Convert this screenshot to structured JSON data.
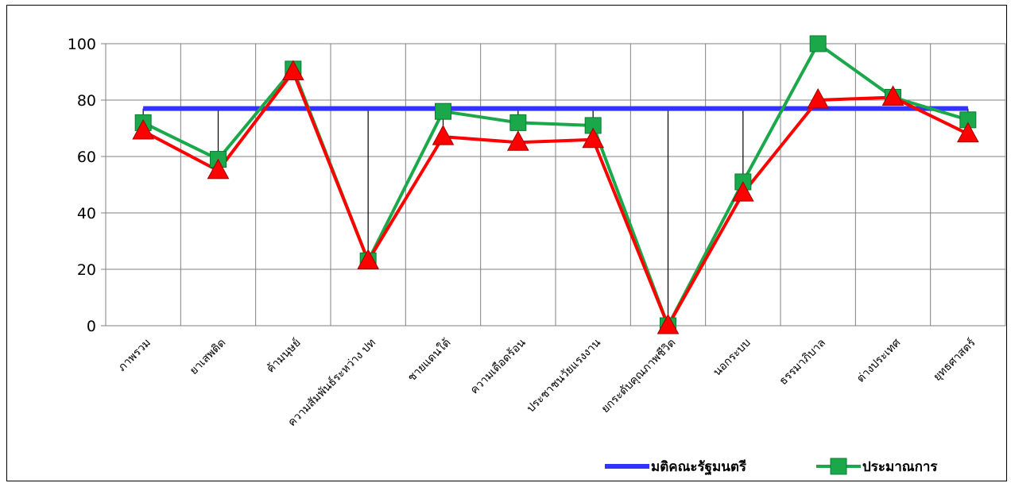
{
  "chart_data": {
    "type": "line",
    "title": "",
    "xlabel": "",
    "ylabel": "",
    "ylim": [
      0,
      100
    ],
    "yticks": [
      0,
      20,
      40,
      60,
      80,
      100
    ],
    "grid": true,
    "legend_position": "bottom-right",
    "categories": [
      "ภาพรวม",
      "ยาเสพติด",
      "ค้ามนุษย์",
      "ความสัมพันธ์ระหว่าง ปท",
      "ชายแดนใต้",
      "ความเดือดร้อน",
      "ประชาชนวัยแรงงาน",
      "ยกระดับคุณภาพชีวิต",
      "นอกระบบ",
      "ธรรมาภิบาล",
      "ต่างประเทศ",
      "ยุทธศาสตร์"
    ],
    "series": [
      {
        "name": "มติคณะรัฐมนตรี",
        "color": "#3333ff",
        "marker": "none",
        "values": [
          77,
          77,
          77,
          77,
          77,
          77,
          77,
          77,
          77,
          77,
          77,
          77
        ]
      },
      {
        "name": "ประมาณการ",
        "color": "#1aa84a",
        "marker": "square",
        "values": [
          72,
          59,
          91,
          23,
          76,
          72,
          71,
          0,
          51,
          100,
          81,
          73
        ]
      },
      {
        "name": "",
        "color": "#ff0000",
        "marker": "triangle",
        "values": [
          69,
          55,
          90,
          23,
          67,
          65,
          66,
          0,
          47,
          80,
          81,
          68
        ]
      }
    ]
  }
}
